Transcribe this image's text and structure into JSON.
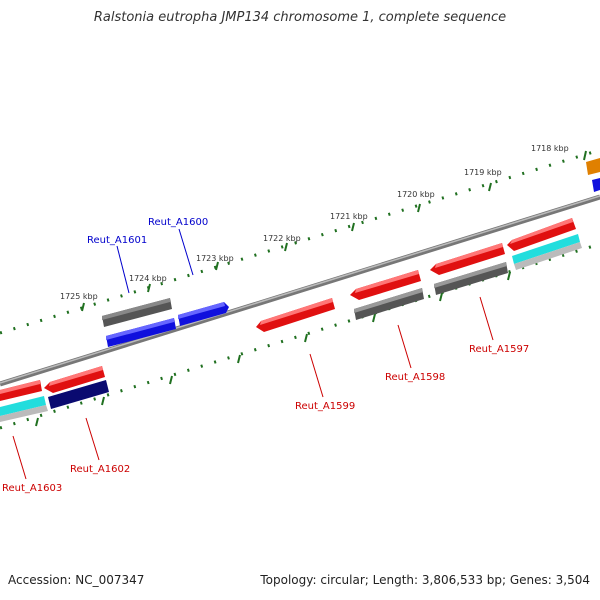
{
  "title": "Ralstonia eutropha JMP134 chromosome 1, complete sequence",
  "footer": {
    "accession": "Accession: NC_007347",
    "topology": "Topology: circular; Length: 3,806,533 bp; Genes: 3,504"
  },
  "scale_labels": [
    "1718 kbp",
    "1719 kbp",
    "1720 kbp",
    "1721 kbp",
    "1722 kbp",
    "1723 kbp",
    "1724 kbp",
    "1725 kbp"
  ],
  "gene_labels": [
    {
      "text": "Reut_A1600",
      "color": "#0000cc"
    },
    {
      "text": "Reut_A1601",
      "color": "#0000cc"
    },
    {
      "text": "Reut_A1597",
      "color": "#cc0000"
    },
    {
      "text": "Reut_A1598",
      "color": "#cc0000"
    },
    {
      "text": "Reut_A1599",
      "color": "#cc0000"
    },
    {
      "text": "Reut_A1602",
      "color": "#cc0000"
    },
    {
      "text": "Reut_A1603",
      "color": "#cc0000"
    }
  ],
  "colors": {
    "cds_red": "#e01010",
    "cds_blue": "#1010dd",
    "cds_navy": "#0a0a70",
    "cds_gray": "#606060",
    "cds_cyan": "#22dddd",
    "cds_lightgray": "#bbbbbb",
    "cds_orange": "#e08000",
    "backbone": "#888888",
    "tick_green": "#207020"
  }
}
